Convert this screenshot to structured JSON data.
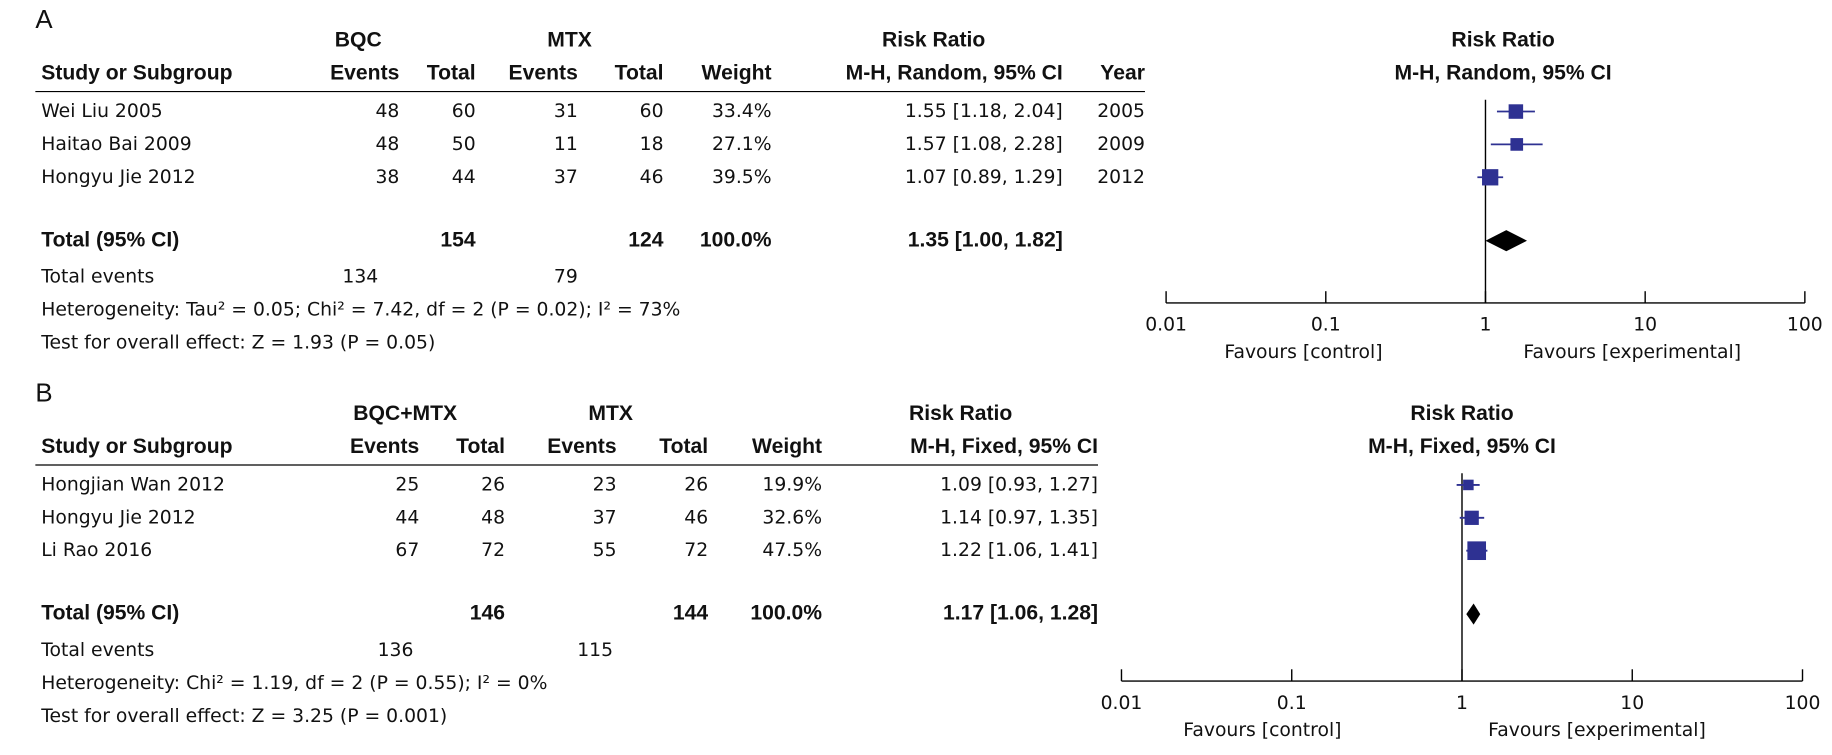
{
  "chart_data": [
    {
      "type": "forest",
      "panel_label": "A",
      "group_1": "BQC",
      "group_2": "MTX",
      "effect_header": "Risk Ratio",
      "columns": [
        "Study or Subgroup",
        "Events",
        "Total",
        "Events",
        "Total",
        "Weight",
        "M-H, Random, 95% CI",
        "Year"
      ],
      "plot_title": "Risk Ratio",
      "plot_subtitle": "M-H, Random, 95% CI",
      "studies": [
        "Wei Liu 2005",
        "Haitao Bai 2009",
        "Hongyu Jie 2012"
      ],
      "events_1": [
        48,
        48,
        38
      ],
      "total_1": [
        60,
        50,
        44
      ],
      "events_2": [
        31,
        11,
        37
      ],
      "total_2": [
        60,
        18,
        46
      ],
      "weights": [
        33.4,
        27.1,
        39.5
      ],
      "weight_labels": [
        "33.4%",
        "27.1%",
        "39.5%"
      ],
      "risk_ratio": [
        1.55,
        1.57,
        1.07
      ],
      "ci_low": [
        1.18,
        1.08,
        0.89
      ],
      "ci_high": [
        2.04,
        2.28,
        1.29
      ],
      "risk_ratio_labels": [
        "1.55 [1.18, 2.04]",
        "1.57 [1.08, 2.28]",
        "1.07 [0.89, 1.29]"
      ],
      "years": [
        2005,
        2009,
        2012
      ],
      "total_label": "Total (95% CI)",
      "total_n_1": 154,
      "total_n_2": 124,
      "total_weight": "100.0%",
      "total_risk_ratio": 1.35,
      "total_ci_low": 1.0,
      "total_ci_high": 1.82,
      "total_risk_ratio_label": "1.35 [1.00, 1.82]",
      "total_events_label": "Total events",
      "total_events_1": 134,
      "total_events_2": 79,
      "heterogeneity": "Heterogeneity: Tau² = 0.05; Chi² = 7.42, df = 2 (P = 0.02); I² = 73%",
      "overall_effect": "Test for overall effect: Z = 1.93 (P = 0.05)",
      "xscale": "log",
      "xlim": [
        0.01,
        100
      ],
      "xticks": [
        0.01,
        0.1,
        1,
        10,
        100
      ],
      "favours_left": "Favours [control]",
      "favours_right": "Favours [experimental]",
      "color": "#2e3192",
      "total_color": "#000000"
    },
    {
      "type": "forest",
      "panel_label": "B",
      "group_1": "BQC+MTX",
      "group_2": "MTX",
      "effect_header": "Risk Ratio",
      "columns": [
        "Study or Subgroup",
        "Events",
        "Total",
        "Events",
        "Total",
        "Weight",
        "M-H, Fixed, 95% CI"
      ],
      "plot_title": "Risk Ratio",
      "plot_subtitle": "M-H, Fixed, 95% CI",
      "studies": [
        "Hongjian Wan 2012",
        "Hongyu Jie 2012",
        "Li Rao 2016"
      ],
      "events_1": [
        25,
        44,
        67
      ],
      "total_1": [
        26,
        48,
        72
      ],
      "events_2": [
        23,
        37,
        55
      ],
      "total_2": [
        26,
        46,
        72
      ],
      "weights": [
        19.9,
        32.6,
        47.5
      ],
      "weight_labels": [
        "19.9%",
        "32.6%",
        "47.5%"
      ],
      "risk_ratio": [
        1.09,
        1.14,
        1.22
      ],
      "ci_low": [
        0.93,
        0.97,
        1.06
      ],
      "ci_high": [
        1.27,
        1.35,
        1.41
      ],
      "risk_ratio_labels": [
        "1.09 [0.93, 1.27]",
        "1.14 [0.97, 1.35]",
        "1.22 [1.06, 1.41]"
      ],
      "total_label": "Total (95% CI)",
      "total_n_1": 146,
      "total_n_2": 144,
      "total_weight": "100.0%",
      "total_risk_ratio": 1.17,
      "total_ci_low": 1.06,
      "total_ci_high": 1.28,
      "total_risk_ratio_label": "1.17 [1.06, 1.28]",
      "total_events_label": "Total events",
      "total_events_1": 136,
      "total_events_2": 115,
      "heterogeneity": "Heterogeneity: Chi² = 1.19, df = 2 (P = 0.55); I² = 0%",
      "overall_effect": "Test for overall effect: Z = 3.25 (P = 0.001)",
      "xscale": "log",
      "xlim": [
        0.01,
        100
      ],
      "xticks": [
        0.01,
        0.1,
        1,
        10,
        100
      ],
      "favours_left": "Favours [control]",
      "favours_right": "Favours [experimental]",
      "color": "#2e3192",
      "total_color": "#000000"
    }
  ]
}
